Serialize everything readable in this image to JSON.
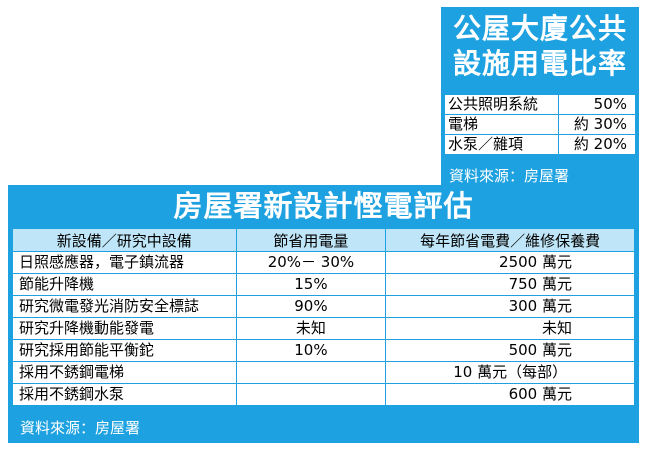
{
  "ratio_box": {
    "title_line1": "公屋大廈公共",
    "title_line2": "設施用電比率",
    "rows": [
      {
        "label": "公共照明系統",
        "value": "50%"
      },
      {
        "label": "電梯",
        "value": "約 30%"
      },
      {
        "label": "水泵／雜項",
        "value": "約 20%"
      }
    ],
    "source": "資料來源：房屋署"
  },
  "assessment": {
    "title": "房屋署新設計慳電評估",
    "headers": [
      "新設備／研究中設備",
      "節省用電量",
      "每年節省電費／維修保養費"
    ],
    "rows": [
      {
        "device": "日照感應器，電子鎮流器",
        "saving": "20%－ 30%",
        "cost": "2500 萬元"
      },
      {
        "device": "節能升降機",
        "saving": "15%",
        "cost": "750 萬元"
      },
      {
        "device": "研究微電發光消防安全標誌",
        "saving": "90%",
        "cost": "300 萬元"
      },
      {
        "device": "研究升降機動能發電",
        "saving": "未知",
        "cost": "未知"
      },
      {
        "device": "研究採用節能平衡鉈",
        "saving": "10%",
        "cost": "500 萬元"
      },
      {
        "device": "採用不銹鋼電梯",
        "saving": "",
        "cost": "10 萬元（每部）"
      },
      {
        "device": "採用不銹鋼水泵",
        "saving": "",
        "cost": "600 萬元"
      }
    ],
    "source": "資料來源：房屋署"
  }
}
